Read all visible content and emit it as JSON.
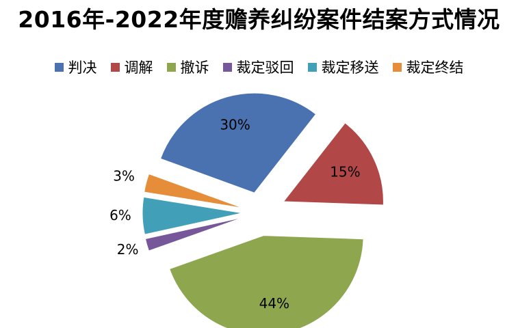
{
  "chart_data": {
    "type": "pie",
    "title": "2016年-2022年度赡养纠纷案件结案方式情况",
    "legend_position": "top",
    "categories": [
      "判决",
      "调解",
      "撤诉",
      "裁定驳回",
      "裁定移送",
      "裁定终结"
    ],
    "values": [
      30,
      15,
      44,
      2,
      6,
      3
    ],
    "data_labels": [
      "30%",
      "15%",
      "44%",
      "2%",
      "6%",
      "3%"
    ],
    "colors": [
      "#4a72b0",
      "#b24747",
      "#8ea74e",
      "#76589a",
      "#41a0b7",
      "#e68d3a"
    ]
  }
}
